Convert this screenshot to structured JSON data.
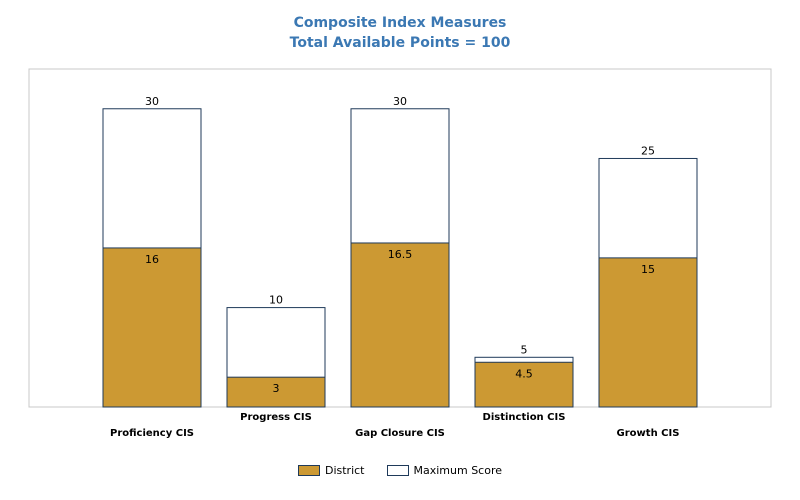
{
  "chart_data": {
    "type": "bar",
    "title": "Composite Index Measures",
    "subtitle": "Total Available Points = 100",
    "categories": [
      "Proficiency CIS",
      "Progress CIS",
      "Gap Closure CIS",
      "Distinction CIS",
      "Growth CIS"
    ],
    "series": [
      {
        "name": "District",
        "values": [
          16,
          3,
          16.5,
          4.5,
          15
        ],
        "color": "#cc9933"
      },
      {
        "name": "Maximum Score",
        "values": [
          30,
          10,
          30,
          5,
          25
        ],
        "color": "#ffffff"
      }
    ],
    "ylim": [
      0,
      34
    ],
    "grid": false,
    "legend": "bottom",
    "border_color": "#1f3a5a"
  }
}
